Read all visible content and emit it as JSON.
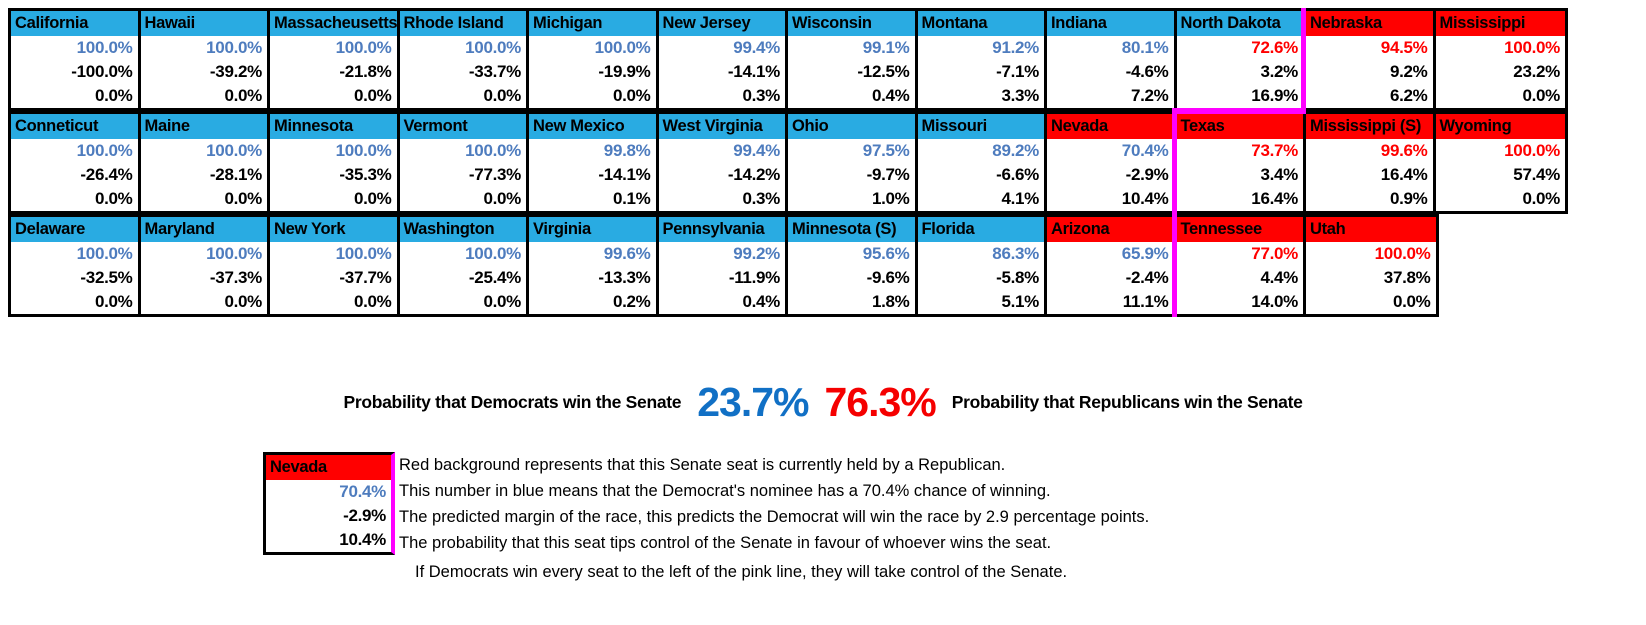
{
  "colors": {
    "header_blue": "#29abe2",
    "header_red": "#ff0000",
    "num_blue": "#4e7cbe",
    "num_red": "#ff0000",
    "pink": "#ff00ff",
    "big_blue": "#1170c5",
    "big_red": "#f50000"
  },
  "board": {
    "rows": [
      {
        "states": [
          {
            "name": "California",
            "held": "D",
            "prob": "100.0%",
            "prob_color": "blue",
            "margin": "-100.0%",
            "tip": "0.0%"
          },
          {
            "name": "Hawaii",
            "held": "D",
            "prob": "100.0%",
            "prob_color": "blue",
            "margin": "-39.2%",
            "tip": "0.0%"
          },
          {
            "name": "Massacheusetts",
            "held": "D",
            "prob": "100.0%",
            "prob_color": "blue",
            "margin": "-21.8%",
            "tip": "0.0%"
          },
          {
            "name": "Rhode Island",
            "held": "D",
            "prob": "100.0%",
            "prob_color": "blue",
            "margin": "-33.7%",
            "tip": "0.0%"
          },
          {
            "name": "Michigan",
            "held": "D",
            "prob": "100.0%",
            "prob_color": "blue",
            "margin": "-19.9%",
            "tip": "0.0%"
          },
          {
            "name": "New Jersey",
            "held": "D",
            "prob": "99.4%",
            "prob_color": "blue",
            "margin": "-14.1%",
            "tip": "0.3%"
          },
          {
            "name": "Wisconsin",
            "held": "D",
            "prob": "99.1%",
            "prob_color": "blue",
            "margin": "-12.5%",
            "tip": "0.4%"
          },
          {
            "name": "Montana",
            "held": "D",
            "prob": "91.2%",
            "prob_color": "blue",
            "margin": "-7.1%",
            "tip": "3.3%"
          },
          {
            "name": "Indiana",
            "held": "D",
            "prob": "80.1%",
            "prob_color": "blue",
            "margin": "-4.6%",
            "tip": "7.2%"
          },
          {
            "name": "North Dakota",
            "held": "D",
            "prob": "72.6%",
            "prob_color": "red",
            "margin": "3.2%",
            "tip": "16.9%"
          },
          {
            "name": "Nebraska",
            "held": "R",
            "prob": "94.5%",
            "prob_color": "red",
            "margin": "9.2%",
            "tip": "6.2%"
          },
          {
            "name": "Mississippi",
            "held": "R",
            "prob": "100.0%",
            "prob_color": "red",
            "margin": "23.2%",
            "tip": "0.0%"
          }
        ]
      },
      {
        "states": [
          {
            "name": "Conneticut",
            "held": "D",
            "prob": "100.0%",
            "prob_color": "blue",
            "margin": "-26.4%",
            "tip": "0.0%"
          },
          {
            "name": "Maine",
            "held": "D",
            "prob": "100.0%",
            "prob_color": "blue",
            "margin": "-28.1%",
            "tip": "0.0%"
          },
          {
            "name": "Minnesota",
            "held": "D",
            "prob": "100.0%",
            "prob_color": "blue",
            "margin": "-35.3%",
            "tip": "0.0%"
          },
          {
            "name": "Vermont",
            "held": "D",
            "prob": "100.0%",
            "prob_color": "blue",
            "margin": "-77.3%",
            "tip": "0.0%"
          },
          {
            "name": "New Mexico",
            "held": "D",
            "prob": "99.8%",
            "prob_color": "blue",
            "margin": "-14.1%",
            "tip": "0.1%"
          },
          {
            "name": "West Virginia",
            "held": "D",
            "prob": "99.4%",
            "prob_color": "blue",
            "margin": "-14.2%",
            "tip": "0.3%"
          },
          {
            "name": "Ohio",
            "held": "D",
            "prob": "97.5%",
            "prob_color": "blue",
            "margin": "-9.7%",
            "tip": "1.0%"
          },
          {
            "name": "Missouri",
            "held": "D",
            "prob": "89.2%",
            "prob_color": "blue",
            "margin": "-6.6%",
            "tip": "4.1%"
          },
          {
            "name": "Nevada",
            "held": "R",
            "prob": "70.4%",
            "prob_color": "blue",
            "margin": "-2.9%",
            "tip": "10.4%"
          },
          {
            "name": "Texas",
            "held": "R",
            "prob": "73.7%",
            "prob_color": "red",
            "margin": "3.4%",
            "tip": "16.4%"
          },
          {
            "name": "Mississippi (S)",
            "held": "R",
            "prob": "99.6%",
            "prob_color": "red",
            "margin": "16.4%",
            "tip": "0.9%"
          },
          {
            "name": "Wyoming",
            "held": "R",
            "prob": "100.0%",
            "prob_color": "red",
            "margin": "57.4%",
            "tip": "0.0%"
          }
        ]
      },
      {
        "states": [
          {
            "name": "Delaware",
            "held": "D",
            "prob": "100.0%",
            "prob_color": "blue",
            "margin": "-32.5%",
            "tip": "0.0%"
          },
          {
            "name": "Maryland",
            "held": "D",
            "prob": "100.0%",
            "prob_color": "blue",
            "margin": "-37.3%",
            "tip": "0.0%"
          },
          {
            "name": "New York",
            "held": "D",
            "prob": "100.0%",
            "prob_color": "blue",
            "margin": "-37.7%",
            "tip": "0.0%"
          },
          {
            "name": "Washington",
            "held": "D",
            "prob": "100.0%",
            "prob_color": "blue",
            "margin": "-25.4%",
            "tip": "0.0%"
          },
          {
            "name": "Virginia",
            "held": "D",
            "prob": "99.6%",
            "prob_color": "blue",
            "margin": "-13.3%",
            "tip": "0.2%"
          },
          {
            "name": "Pennsylvania",
            "held": "D",
            "prob": "99.2%",
            "prob_color": "blue",
            "margin": "-11.9%",
            "tip": "0.4%"
          },
          {
            "name": "Minnesota (S)",
            "held": "D",
            "prob": "95.6%",
            "prob_color": "blue",
            "margin": "-9.6%",
            "tip": "1.8%"
          },
          {
            "name": "Florida",
            "held": "D",
            "prob": "86.3%",
            "prob_color": "blue",
            "margin": "-5.8%",
            "tip": "5.1%"
          },
          {
            "name": "Arizona",
            "held": "R",
            "prob": "65.9%",
            "prob_color": "blue",
            "margin": "-2.4%",
            "tip": "11.1%"
          },
          {
            "name": "Tennessee",
            "held": "R",
            "prob": "77.0%",
            "prob_color": "red",
            "margin": "4.4%",
            "tip": "14.0%"
          },
          {
            "name": "Utah",
            "held": "R",
            "prob": "100.0%",
            "prob_color": "red",
            "margin": "37.8%",
            "tip": "0.0%"
          }
        ]
      }
    ]
  },
  "summary": {
    "dem_label": "Probability that Democrats win the Senate",
    "dem_value": "23.7%",
    "rep_value": "76.3%",
    "rep_label": "Probability that Republicans win the Senate"
  },
  "legend": {
    "example": {
      "name": "Nevada",
      "prob": "70.4%",
      "margin": "-2.9%",
      "tip": "10.4%"
    },
    "lines": [
      "Red background represents that this Senate seat is currently held by a Republican.",
      "This number in blue means that the Democrat's nominee has a 70.4% chance of winning.",
      "The predicted margin of the race, this predicts the Democrat will win the race by 2.9 percentage points.",
      "The probability that this seat tips control of the Senate in favour of whoever wins the seat.",
      "If Democrats win every seat to the left of the pink line, they will take control of the Senate."
    ]
  }
}
